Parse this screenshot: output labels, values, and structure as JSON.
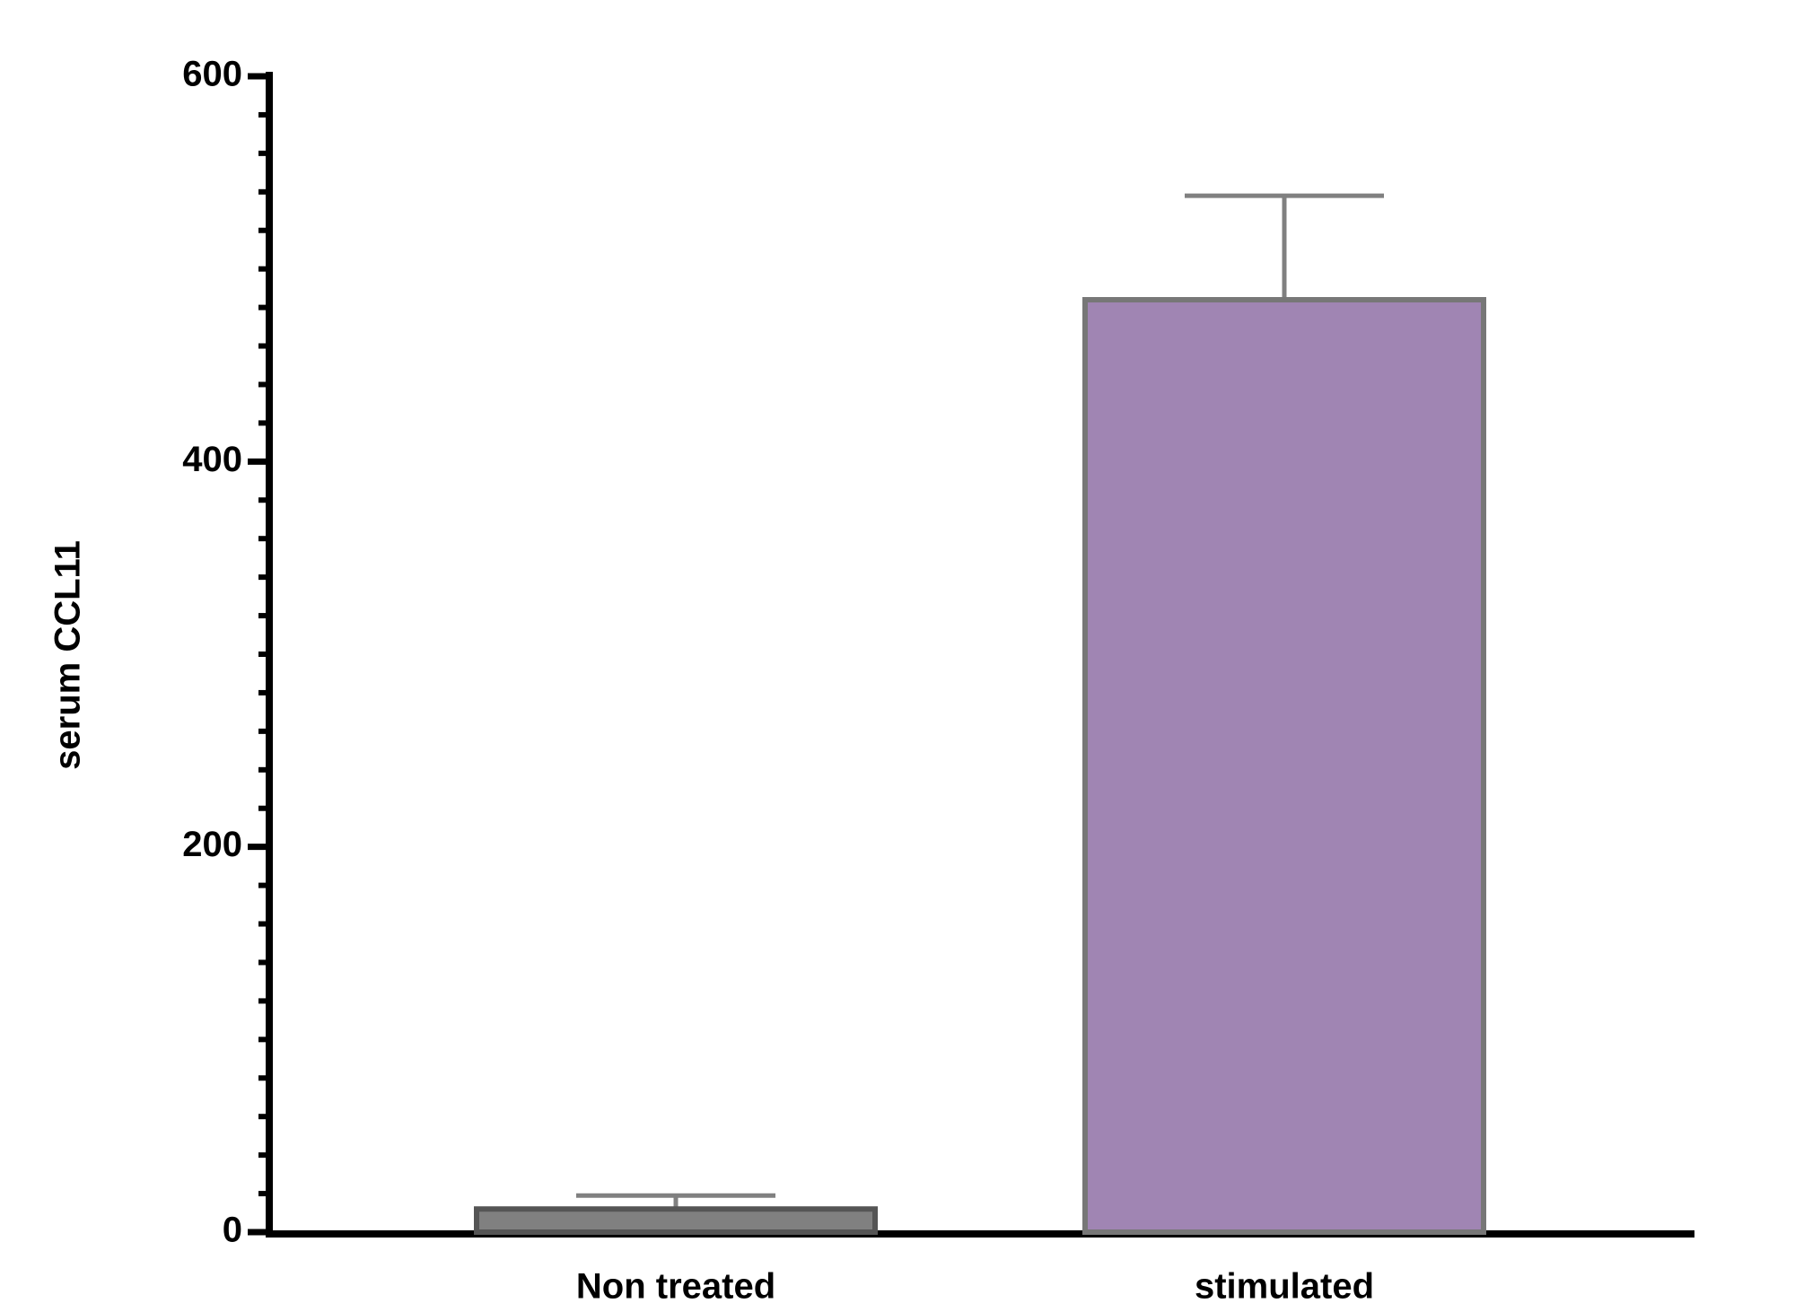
{
  "chart_data": {
    "type": "bar",
    "ylabel": "serum CCL11",
    "categories": [
      "Non treated",
      "stimulated"
    ],
    "values": [
      12,
      484
    ],
    "errors": [
      7,
      54
    ],
    "colors": [
      "#808080",
      "#a085b3"
    ],
    "ylim": [
      0,
      600
    ],
    "yticks": [
      0,
      200,
      400,
      600
    ],
    "yminorticks": [
      20,
      40,
      60,
      80,
      100,
      120,
      140,
      160,
      180,
      220,
      240,
      260,
      280,
      300,
      320,
      340,
      360,
      380,
      420,
      440,
      460,
      480,
      500,
      520,
      540,
      560,
      580
    ]
  }
}
